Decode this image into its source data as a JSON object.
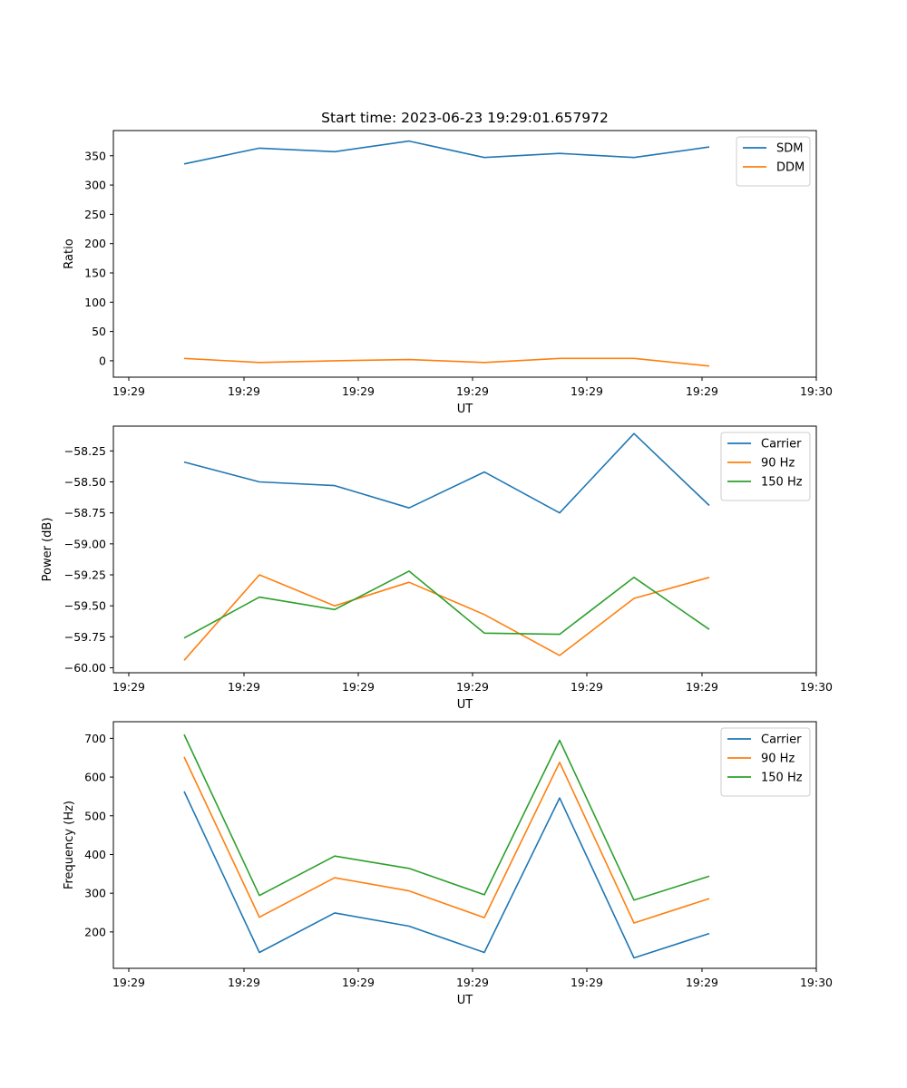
{
  "chart_data": [
    {
      "type": "line",
      "title": "Start time: 2023-06-23 19:29:01.657972",
      "xlabel": "UT",
      "ylabel": "Ratio",
      "x_tick_labels": [
        "19:29",
        "19:29",
        "19:29",
        "19:29",
        "19:29",
        "19:29",
        "19:30"
      ],
      "y_ticks": [
        0,
        50,
        100,
        150,
        200,
        250,
        300,
        350
      ],
      "ylim": [
        -28,
        393
      ],
      "legend_position": "top-right",
      "series": [
        {
          "name": "SDM",
          "color": "#1f77b4",
          "values": [
            336,
            363,
            357,
            375,
            347,
            354,
            347,
            365
          ]
        },
        {
          "name": "DDM",
          "color": "#ff7f0e",
          "values": [
            4,
            -3,
            0,
            2,
            -3,
            4,
            4,
            -9
          ]
        }
      ]
    },
    {
      "type": "line",
      "title": "",
      "xlabel": "UT",
      "ylabel": "Power (dB)",
      "x_tick_labels": [
        "19:29",
        "19:29",
        "19:29",
        "19:29",
        "19:29",
        "19:29",
        "19:30"
      ],
      "y_ticks": [
        -60.0,
        -59.75,
        -59.5,
        -59.25,
        -59.0,
        -58.75,
        -58.5,
        -58.25
      ],
      "y_tick_labels": [
        "−60.00",
        "−59.75",
        "−59.50",
        "−59.25",
        "−59.00",
        "−58.75",
        "−58.50",
        "−58.25"
      ],
      "ylim": [
        -60.04,
        -58.05
      ],
      "legend_position": "top-right",
      "series": [
        {
          "name": "Carrier",
          "color": "#1f77b4",
          "values": [
            -58.34,
            -58.5,
            -58.53,
            -58.71,
            -58.42,
            -58.75,
            -58.11,
            -58.69
          ]
        },
        {
          "name": "90 Hz",
          "color": "#ff7f0e",
          "values": [
            -59.94,
            -59.25,
            -59.5,
            -59.31,
            -59.57,
            -59.9,
            -59.44,
            -59.27
          ]
        },
        {
          "name": "150 Hz",
          "color": "#2ca02c",
          "values": [
            -59.76,
            -59.43,
            -59.53,
            -59.22,
            -59.72,
            -59.73,
            -59.27,
            -59.69
          ]
        }
      ]
    },
    {
      "type": "line",
      "title": "",
      "xlabel": "UT",
      "ylabel": "Frequency (Hz)",
      "x_tick_labels": [
        "19:29",
        "19:29",
        "19:29",
        "19:29",
        "19:29",
        "19:29",
        "19:30"
      ],
      "y_ticks": [
        200,
        300,
        400,
        500,
        600,
        700
      ],
      "ylim": [
        106,
        743
      ],
      "legend_position": "top-right",
      "series": [
        {
          "name": "Carrier",
          "color": "#1f77b4",
          "values": [
            563,
            147,
            249,
            215,
            147,
            546,
            133,
            196
          ]
        },
        {
          "name": "90 Hz",
          "color": "#ff7f0e",
          "values": [
            652,
            238,
            340,
            306,
            237,
            638,
            223,
            286
          ]
        },
        {
          "name": "150 Hz",
          "color": "#2ca02c",
          "values": [
            710,
            294,
            396,
            364,
            296,
            695,
            282,
            344
          ]
        }
      ]
    }
  ]
}
